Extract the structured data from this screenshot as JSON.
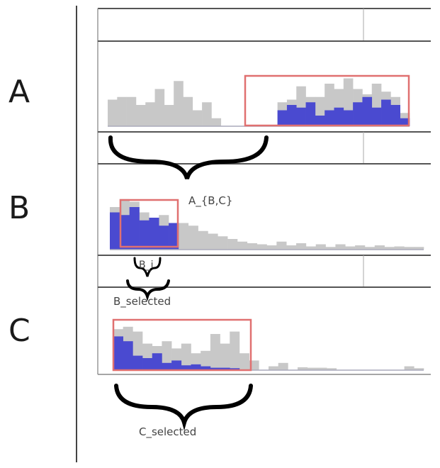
{
  "rows": [
    {
      "letter": "A",
      "gray": [
        0.5,
        0.55,
        0.55,
        0.4,
        0.45,
        0.7,
        0.4,
        0.85,
        0.55,
        0.3,
        0.45,
        0.15,
        0,
        0,
        0,
        0,
        0,
        0,
        0.45,
        0.5,
        0.75,
        0.55,
        0.55,
        0.8,
        0.7,
        0.9,
        0.7,
        0.6,
        0.8,
        0.65,
        0.55,
        0.25
      ],
      "blue": [
        0,
        0,
        0,
        0,
        0,
        0,
        0,
        0,
        0,
        0,
        0,
        0,
        0,
        0,
        0,
        0,
        0,
        0,
        0.3,
        0.4,
        0.35,
        0.45,
        0.2,
        0.3,
        0.35,
        0.3,
        0.45,
        0.55,
        0.35,
        0.5,
        0.4,
        0.15
      ]
    },
    {
      "letter": "B",
      "gray": [
        0.8,
        0.95,
        0.9,
        0.7,
        0.55,
        0.65,
        0.5,
        0.5,
        0.45,
        0.35,
        0.3,
        0.25,
        0.2,
        0.15,
        0.12,
        0.1,
        0.08,
        0.15,
        0.08,
        0.12,
        0.06,
        0.1,
        0.05,
        0.1,
        0.06,
        0.08,
        0.05,
        0.08,
        0.05,
        0.06,
        0.05,
        0.05
      ],
      "blue": [
        0.7,
        0.65,
        0.8,
        0.55,
        0.6,
        0.45,
        0.5,
        0,
        0,
        0,
        0,
        0,
        0,
        0,
        0,
        0,
        0,
        0,
        0,
        0,
        0,
        0,
        0,
        0,
        0,
        0,
        0,
        0,
        0,
        0,
        0,
        0
      ]
    },
    {
      "letter": "C",
      "gray": [
        0.85,
        0.9,
        0.8,
        0.55,
        0.5,
        0.6,
        0.45,
        0.55,
        0.35,
        0.4,
        0.75,
        0.55,
        0.8,
        0.35,
        0.2,
        0,
        0.08,
        0.15,
        0,
        0.06,
        0.05,
        0.05,
        0.04,
        0,
        0,
        0,
        0,
        0,
        0,
        0,
        0.08,
        0.04
      ],
      "blue": [
        0.7,
        0.6,
        0.3,
        0.25,
        0.35,
        0.15,
        0.2,
        0.1,
        0.12,
        0.08,
        0.05,
        0.05,
        0.04,
        0,
        0,
        0,
        0,
        0,
        0,
        0,
        0,
        0,
        0,
        0,
        0,
        0,
        0,
        0,
        0,
        0,
        0,
        0
      ]
    }
  ],
  "labels": {
    "a_brace": "A_{B,C}",
    "bi_brace": "B_i",
    "bsel_brace": "B_selected",
    "csel_brace": "C_selected"
  },
  "colors": {
    "gray": "#c8c8c8",
    "blue": "#4a4ad0",
    "red": "#e07070",
    "line": "#555555"
  }
}
